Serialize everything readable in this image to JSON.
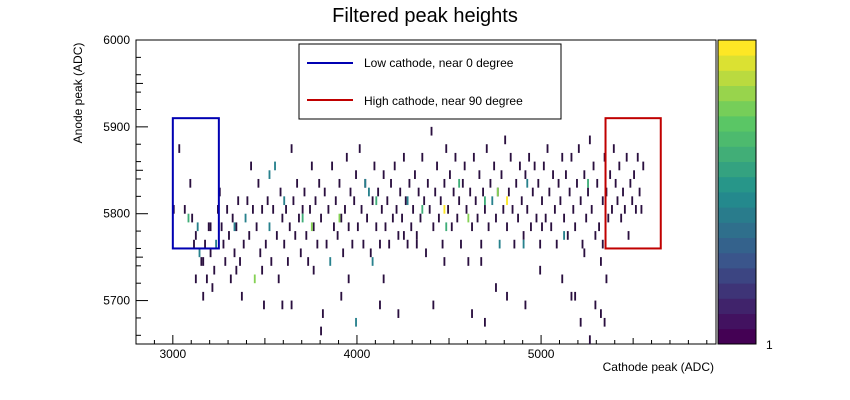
{
  "chart_data": {
    "type": "heatmap",
    "title": "Filtered peak heights",
    "xlabel": "Cathode peak (ADC)",
    "ylabel": "Anode peak (ADC)",
    "xlim": [
      2800,
      5950
    ],
    "ylim": [
      5650,
      6000
    ],
    "x_ticks": [
      3000,
      4000,
      5000
    ],
    "y_ticks": [
      5700,
      5800,
      5900,
      6000
    ],
    "colorbar": {
      "min_label": "1",
      "palette": "viridis",
      "levels": 20
    },
    "legend": {
      "placement": "top-center",
      "entries": [
        {
          "label": "Low cathode, near 0 degree",
          "color": "#0000b2"
        },
        {
          "label": "High cathode, near 90 degree",
          "color": "#c00000"
        }
      ]
    },
    "regions": [
      {
        "name": "Low cathode, near 0 degree",
        "x": [
          3000,
          3250
        ],
        "y": [
          5760,
          5910
        ],
        "color": "#0000b2"
      },
      {
        "name": "High cathode, near 90 degree",
        "x": [
          5350,
          5650
        ],
        "y": [
          5760,
          5910
        ],
        "color": "#c00000"
      }
    ],
    "bins": {
      "x_width": 10,
      "y_height": 10
    },
    "points": [
      [
        3030,
        5870,
        1
      ],
      [
        3060,
        5800,
        1
      ],
      [
        3080,
        5790,
        3
      ],
      [
        3090,
        5830,
        1
      ],
      [
        3100,
        5790,
        1
      ],
      [
        3110,
        5760,
        1
      ],
      [
        3120,
        5770,
        1
      ],
      [
        3130,
        5780,
        2
      ],
      [
        3140,
        5750,
        2
      ],
      [
        3150,
        5740,
        1
      ],
      [
        3160,
        5700,
        1
      ],
      [
        3170,
        5760,
        1
      ],
      [
        3180,
        5720,
        1
      ],
      [
        3190,
        5780,
        1
      ],
      [
        3200,
        5750,
        1
      ],
      [
        3210,
        5710,
        1
      ],
      [
        3220,
        5730,
        1
      ],
      [
        3230,
        5760,
        2
      ],
      [
        3240,
        5800,
        1
      ],
      [
        3250,
        5820,
        1
      ],
      [
        3260,
        5780,
        1
      ],
      [
        3270,
        5760,
        1
      ],
      [
        3280,
        5740,
        1
      ],
      [
        3290,
        5800,
        1
      ],
      [
        3300,
        5770,
        1
      ],
      [
        3310,
        5720,
        1
      ],
      [
        3320,
        5790,
        1
      ],
      [
        3330,
        5750,
        1
      ],
      [
        3340,
        5780,
        1
      ],
      [
        3350,
        5810,
        1
      ],
      [
        3360,
        5740,
        1
      ],
      [
        3370,
        5700,
        1
      ],
      [
        3380,
        5760,
        1
      ],
      [
        3390,
        5790,
        2
      ],
      [
        3400,
        5810,
        1
      ],
      [
        3410,
        5770,
        1
      ],
      [
        3420,
        5850,
        1
      ],
      [
        3430,
        5800,
        1
      ],
      [
        3440,
        5720,
        4
      ],
      [
        3450,
        5780,
        1
      ],
      [
        3460,
        5830,
        1
      ],
      [
        3470,
        5750,
        1
      ],
      [
        3480,
        5800,
        1
      ],
      [
        3490,
        5690,
        1
      ],
      [
        3500,
        5760,
        1
      ],
      [
        3510,
        5810,
        1
      ],
      [
        3520,
        5780,
        2
      ],
      [
        3530,
        5740,
        1
      ],
      [
        3540,
        5800,
        1
      ],
      [
        3550,
        5850,
        2
      ],
      [
        3560,
        5770,
        1
      ],
      [
        3570,
        5720,
        1
      ],
      [
        3580,
        5820,
        1
      ],
      [
        3590,
        5790,
        1
      ],
      [
        3600,
        5760,
        1
      ],
      [
        3610,
        5800,
        1
      ],
      [
        3620,
        5740,
        1
      ],
      [
        3630,
        5780,
        1
      ],
      [
        3640,
        5870,
        1
      ],
      [
        3650,
        5810,
        1
      ],
      [
        3660,
        5770,
        1
      ],
      [
        3670,
        5830,
        1
      ],
      [
        3680,
        5790,
        1
      ],
      [
        3690,
        5750,
        1
      ],
      [
        3700,
        5800,
        1
      ],
      [
        3710,
        5820,
        1
      ],
      [
        3720,
        5770,
        1
      ],
      [
        3730,
        5740,
        1
      ],
      [
        3740,
        5800,
        1
      ],
      [
        3750,
        5850,
        1
      ],
      [
        3760,
        5780,
        1
      ],
      [
        3770,
        5810,
        1
      ],
      [
        3780,
        5760,
        1
      ],
      [
        3790,
        5830,
        1
      ],
      [
        3800,
        5790,
        1
      ],
      [
        3810,
        5680,
        1
      ],
      [
        3820,
        5820,
        1
      ],
      [
        3830,
        5760,
        1
      ],
      [
        3840,
        5800,
        1
      ],
      [
        3850,
        5740,
        2
      ],
      [
        3860,
        5850,
        1
      ],
      [
        3870,
        5780,
        1
      ],
      [
        3880,
        5810,
        1
      ],
      [
        3890,
        5770,
        1
      ],
      [
        3900,
        5830,
        1
      ],
      [
        3910,
        5790,
        1
      ],
      [
        3920,
        5750,
        1
      ],
      [
        3930,
        5800,
        1
      ],
      [
        3940,
        5860,
        1
      ],
      [
        3950,
        5780,
        1
      ],
      [
        3960,
        5820,
        1
      ],
      [
        3970,
        5760,
        1
      ],
      [
        3980,
        5810,
        1
      ],
      [
        3990,
        5840,
        1
      ],
      [
        4000,
        5780,
        1
      ],
      [
        4010,
        5870,
        1
      ],
      [
        4020,
        5800,
        1
      ],
      [
        4030,
        5760,
        1
      ],
      [
        4040,
        5830,
        1
      ],
      [
        4050,
        5790,
        1
      ],
      [
        4060,
        5820,
        2
      ],
      [
        4070,
        5750,
        1
      ],
      [
        4080,
        5810,
        1
      ],
      [
        4090,
        5850,
        1
      ],
      [
        4100,
        5780,
        1
      ],
      [
        4110,
        5820,
        1
      ],
      [
        4120,
        5760,
        1
      ],
      [
        4130,
        5800,
        1
      ],
      [
        4140,
        5840,
        1
      ],
      [
        4150,
        5780,
        1
      ],
      [
        4160,
        5810,
        1
      ],
      [
        4170,
        5760,
        1
      ],
      [
        4180,
        5830,
        1
      ],
      [
        4190,
        5790,
        1
      ],
      [
        4200,
        5850,
        1
      ],
      [
        4210,
        5800,
        1
      ],
      [
        4220,
        5770,
        1
      ],
      [
        4230,
        5820,
        1
      ],
      [
        4240,
        5790,
        1
      ],
      [
        4250,
        5860,
        1
      ],
      [
        4260,
        5810,
        1
      ],
      [
        4270,
        5760,
        1
      ],
      [
        4280,
        5830,
        1
      ],
      [
        4290,
        5780,
        1
      ],
      [
        4300,
        5800,
        1
      ],
      [
        4310,
        5840,
        1
      ],
      [
        4320,
        5770,
        1
      ],
      [
        4330,
        5820,
        1
      ],
      [
        4340,
        5790,
        1
      ],
      [
        4350,
        5860,
        1
      ],
      [
        4360,
        5810,
        1
      ],
      [
        4370,
        5750,
        1
      ],
      [
        4380,
        5830,
        1
      ],
      [
        4390,
        5800,
        1
      ],
      [
        4400,
        5890,
        1
      ],
      [
        4410,
        5780,
        1
      ],
      [
        4420,
        5820,
        1
      ],
      [
        4430,
        5850,
        1
      ],
      [
        4440,
        5790,
        1
      ],
      [
        4450,
        5810,
        1
      ],
      [
        4460,
        5760,
        1
      ],
      [
        4470,
        5830,
        1
      ],
      [
        4480,
        5870,
        1
      ],
      [
        4490,
        5800,
        1
      ],
      [
        4500,
        5840,
        1
      ],
      [
        4510,
        5780,
        1
      ],
      [
        4520,
        5820,
        1
      ],
      [
        4530,
        5860,
        1
      ],
      [
        4540,
        5790,
        1
      ],
      [
        4550,
        5810,
        1
      ],
      [
        4560,
        5760,
        1
      ],
      [
        4570,
        5830,
        1
      ],
      [
        4580,
        5850,
        1
      ],
      [
        4590,
        5800,
        1
      ],
      [
        4600,
        5740,
        1
      ],
      [
        4610,
        5820,
        1
      ],
      [
        4620,
        5780,
        1
      ],
      [
        4630,
        5860,
        1
      ],
      [
        4640,
        5810,
        1
      ],
      [
        4650,
        5790,
        1
      ],
      [
        4660,
        5840,
        1
      ],
      [
        4670,
        5760,
        1
      ],
      [
        4680,
        5820,
        1
      ],
      [
        4690,
        5800,
        1
      ],
      [
        4700,
        5870,
        1
      ],
      [
        4710,
        5780,
        1
      ],
      [
        4720,
        5830,
        1
      ],
      [
        4730,
        5810,
        2
      ],
      [
        4740,
        5850,
        1
      ],
      [
        4750,
        5790,
        1
      ],
      [
        4760,
        5820,
        1
      ],
      [
        4770,
        5760,
        2
      ],
      [
        4780,
        5840,
        1
      ],
      [
        4790,
        5800,
        1
      ],
      [
        4800,
        5880,
        1
      ],
      [
        4810,
        5780,
        1
      ],
      [
        4820,
        5820,
        1
      ],
      [
        4830,
        5860,
        1
      ],
      [
        4840,
        5800,
        1
      ],
      [
        4850,
        5760,
        1
      ],
      [
        4860,
        5830,
        1
      ],
      [
        4870,
        5790,
        1
      ],
      [
        4880,
        5850,
        1
      ],
      [
        4890,
        5810,
        1
      ],
      [
        4900,
        5770,
        1
      ],
      [
        4910,
        5840,
        1
      ],
      [
        4920,
        5800,
        1
      ],
      [
        4930,
        5860,
        1
      ],
      [
        4940,
        5780,
        1
      ],
      [
        4950,
        5820,
        1
      ],
      [
        4960,
        5850,
        1
      ],
      [
        4970,
        5790,
        1
      ],
      [
        4980,
        5830,
        1
      ],
      [
        4990,
        5760,
        1
      ],
      [
        5000,
        5810,
        1
      ],
      [
        5010,
        5850,
        1
      ],
      [
        5020,
        5790,
        1
      ],
      [
        5030,
        5870,
        1
      ],
      [
        5040,
        5820,
        1
      ],
      [
        5050,
        5780,
        1
      ],
      [
        5060,
        5840,
        1
      ],
      [
        5070,
        5800,
        1
      ],
      [
        5080,
        5760,
        1
      ],
      [
        5090,
        5830,
        1
      ],
      [
        5100,
        5810,
        1
      ],
      [
        5110,
        5860,
        1
      ],
      [
        5120,
        5790,
        1
      ],
      [
        5130,
        5840,
        1
      ],
      [
        5140,
        5770,
        1
      ],
      [
        5150,
        5820,
        1
      ],
      [
        5160,
        5860,
        1
      ],
      [
        5170,
        5800,
        1
      ],
      [
        5180,
        5780,
        1
      ],
      [
        5190,
        5830,
        1
      ],
      [
        5200,
        5870,
        1
      ],
      [
        5210,
        5810,
        1
      ],
      [
        5220,
        5760,
        1
      ],
      [
        5230,
        5840,
        1
      ],
      [
        5240,
        5790,
        1
      ],
      [
        5250,
        5820,
        1
      ],
      [
        5260,
        5880,
        1
      ],
      [
        5270,
        5800,
        1
      ],
      [
        5280,
        5850,
        1
      ],
      [
        5290,
        5770,
        1
      ],
      [
        5300,
        5830,
        1
      ],
      [
        5310,
        5780,
        1
      ],
      [
        5320,
        5740,
        1
      ],
      [
        5330,
        5810,
        1
      ],
      [
        5340,
        5860,
        1
      ],
      [
        5350,
        5820,
        1
      ],
      [
        5360,
        5790,
        1
      ],
      [
        5370,
        5840,
        1
      ],
      [
        5380,
        5800,
        1
      ],
      [
        5390,
        5870,
        1
      ],
      [
        5400,
        5830,
        1
      ],
      [
        5410,
        5810,
        1
      ],
      [
        5420,
        5850,
        1
      ],
      [
        5430,
        5790,
        1
      ],
      [
        5440,
        5820,
        1
      ],
      [
        5450,
        5800,
        1
      ],
      [
        5460,
        5860,
        1
      ],
      [
        5470,
        5770,
        1
      ],
      [
        5480,
        5830,
        1
      ],
      [
        5490,
        5810,
        1
      ],
      [
        5500,
        5840,
        1
      ],
      [
        5510,
        5800,
        1
      ],
      [
        5520,
        5860,
        1
      ],
      [
        5530,
        5820,
        1
      ],
      [
        5540,
        5800,
        1
      ],
      [
        5550,
        5850,
        1
      ],
      [
        3600,
        5810,
        2
      ],
      [
        3700,
        5790,
        3
      ],
      [
        3900,
        5790,
        4
      ],
      [
        4100,
        5810,
        3
      ],
      [
        4270,
        5810,
        2
      ],
      [
        4470,
        5800,
        5
      ],
      [
        4550,
        5830,
        3
      ],
      [
        4690,
        5810,
        3
      ],
      [
        4760,
        5820,
        4
      ],
      [
        4810,
        5810,
        5
      ],
      [
        4920,
        5830,
        2
      ],
      [
        5120,
        5770,
        2
      ],
      [
        5250,
        5830,
        3
      ],
      [
        3520,
        5840,
        2
      ],
      [
        3750,
        5780,
        4
      ],
      [
        4040,
        5830,
        2
      ],
      [
        4350,
        5800,
        3
      ],
      [
        4480,
        5780,
        3
      ],
      [
        4600,
        5790,
        4
      ],
      [
        4900,
        5760,
        2
      ],
      [
        3330,
        5780,
        2
      ],
      [
        3800,
        5660,
        1
      ],
      [
        3950,
        5720,
        1
      ],
      [
        4120,
        5690,
        1
      ],
      [
        4220,
        5680,
        1
      ],
      [
        4410,
        5690,
        1
      ],
      [
        4620,
        5680,
        1
      ],
      [
        4670,
        5740,
        1
      ],
      [
        4810,
        5700,
        1
      ],
      [
        5110,
        5720,
        1
      ],
      [
        5180,
        5700,
        1
      ],
      [
        5210,
        5670,
        1
      ],
      [
        5260,
        5650,
        1
      ],
      [
        5290,
        5690,
        1
      ],
      [
        5340,
        5670,
        1
      ],
      [
        5350,
        5720,
        1
      ],
      [
        3640,
        5690,
        1
      ],
      [
        3480,
        5730,
        1
      ],
      [
        4250,
        5770,
        1
      ],
      [
        4080,
        5740,
        2
      ],
      [
        3910,
        5700,
        1
      ],
      [
        4320,
        5760,
        1
      ],
      [
        4690,
        5670,
        1
      ],
      [
        4990,
        5730,
        1
      ],
      [
        5000,
        5780,
        1
      ],
      [
        5320,
        5680,
        1
      ],
      [
        5330,
        5760,
        1
      ],
      [
        3340,
        5730,
        1
      ],
      [
        3590,
        5690,
        1
      ],
      [
        3760,
        5730,
        1
      ],
      [
        3990,
        5670,
        2
      ],
      [
        4140,
        5720,
        1
      ],
      [
        4470,
        5740,
        1
      ],
      [
        4750,
        5710,
        1
      ],
      [
        4910,
        5690,
        1
      ],
      [
        5160,
        5700,
        1
      ],
      [
        5230,
        5750,
        1
      ],
      [
        3000,
        5800,
        1
      ],
      [
        3120,
        5720,
        1
      ],
      [
        3160,
        5740,
        1
      ],
      [
        3200,
        5780,
        1
      ]
    ]
  }
}
